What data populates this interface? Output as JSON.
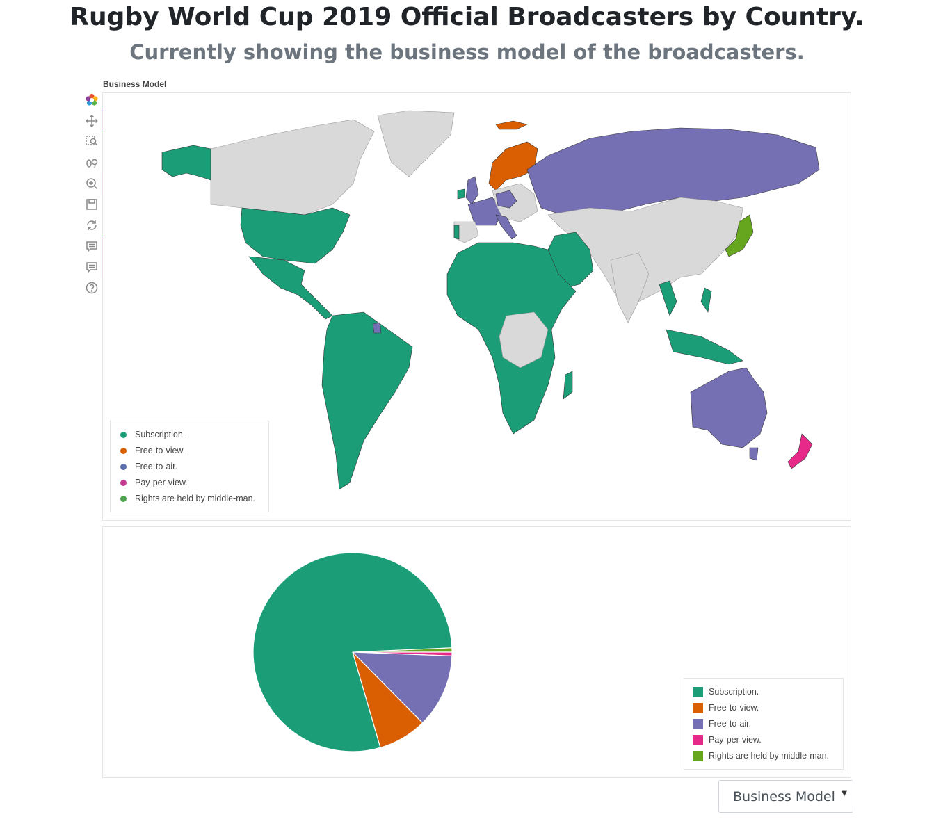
{
  "page": {
    "title": "Rugby World Cup 2019 Official Broadcasters by Country.",
    "subtitle": "Currently showing the business model of the broadcasters."
  },
  "map": {
    "label": "Business Model",
    "land_color": "#d9d9d9"
  },
  "toolbar": {
    "items": [
      "bokeh-logo-icon",
      "pan-icon",
      "box-zoom-icon",
      "wheel-zoom-icon",
      "zoom-in-icon",
      "save-icon",
      "reset-icon",
      "hover-icon",
      "hover-icon-2",
      "help-icon"
    ]
  },
  "legend": {
    "items": [
      {
        "label": "Subscription.",
        "color": "#1b9e77"
      },
      {
        "label": "Free-to-view.",
        "color": "#d95f02"
      },
      {
        "label": "Free-to-air.",
        "color": "#7570b3"
      },
      {
        "label": "Pay-per-view.",
        "color": "#e7298a"
      },
      {
        "label": "Rights are held by middle-man.",
        "color": "#66a61e"
      }
    ]
  },
  "map_legend_dot_colors": [
    "#1b9e77",
    "#d95f02",
    "#5b6fae",
    "#c43c92",
    "#4ea44e"
  ],
  "chart_data": {
    "type": "pie",
    "title": "",
    "series": [
      {
        "label": "Subscription.",
        "value": 78.8,
        "color": "#1b9e77"
      },
      {
        "label": "Free-to-view.",
        "value": 7.9,
        "color": "#d95f02"
      },
      {
        "label": "Free-to-air.",
        "value": 12.0,
        "color": "#7570b3"
      },
      {
        "label": "Pay-per-view.",
        "value": 0.6,
        "color": "#e7298a"
      },
      {
        "label": "Rights are held by middle-man.",
        "value": 0.7,
        "color": "#66a61e"
      }
    ],
    "legend_position": "bottom-right"
  },
  "selector": {
    "value": "Business Model"
  }
}
